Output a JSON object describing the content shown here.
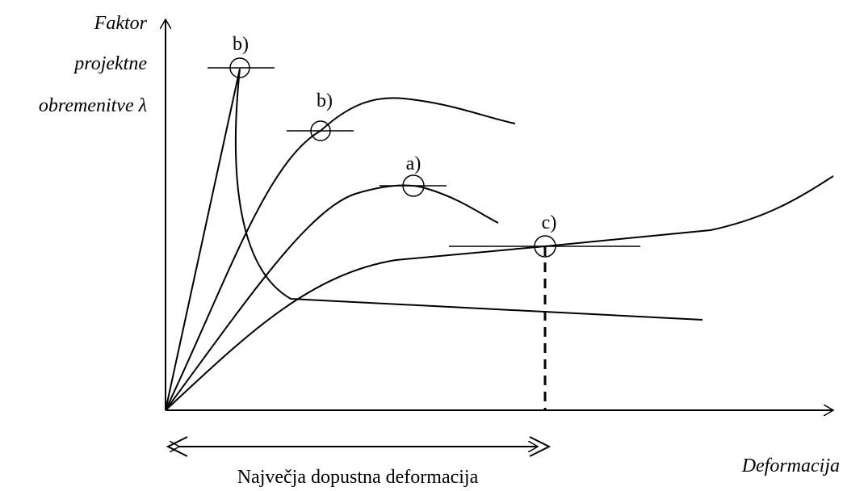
{
  "y_axis_label": [
    "Faktor",
    "projektne",
    "obremenitve λ"
  ],
  "x_axis_label": "Deformacija",
  "annotations": [
    "b)",
    "b)",
    "a)",
    "c)"
  ],
  "bottom_label": "Največja dopustna deformacija"
}
